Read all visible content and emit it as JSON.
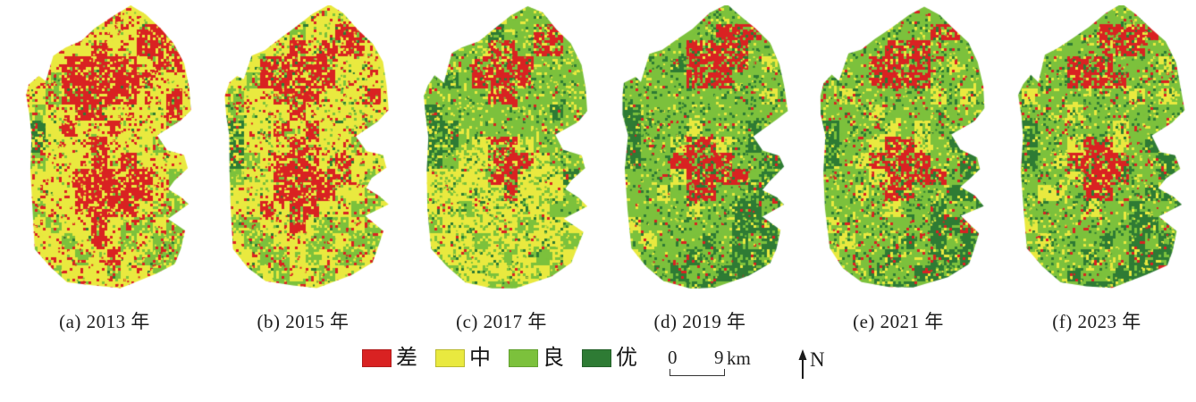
{
  "figure": {
    "type": "classified-raster-map-series",
    "classes": {
      "R": "#d92222",
      "Y": "#e9e93f",
      "G": "#7cc13c",
      "D": "#2e7b34"
    },
    "class_names": {
      "R": "差",
      "Y": "中",
      "G": "良",
      "D": "优"
    },
    "boundary": [
      [
        64,
        0
      ],
      [
        72,
        3
      ],
      [
        80,
        8
      ],
      [
        88,
        13
      ],
      [
        93,
        20
      ],
      [
        96,
        28
      ],
      [
        97,
        36
      ],
      [
        91,
        40
      ],
      [
        79,
        45
      ],
      [
        84,
        50
      ],
      [
        93,
        52
      ],
      [
        95,
        56
      ],
      [
        88,
        60
      ],
      [
        84,
        63
      ],
      [
        92,
        66
      ],
      [
        96,
        69
      ],
      [
        84,
        73
      ],
      [
        94,
        78
      ],
      [
        91,
        84
      ],
      [
        88,
        89
      ],
      [
        77,
        93
      ],
      [
        58,
        97
      ],
      [
        44,
        97
      ],
      [
        30,
        95
      ],
      [
        20,
        90
      ],
      [
        12,
        84
      ],
      [
        10,
        70
      ],
      [
        9,
        57
      ],
      [
        10,
        45
      ],
      [
        8,
        38
      ],
      [
        7,
        31
      ],
      [
        9,
        27
      ],
      [
        14,
        24
      ],
      [
        18,
        26
      ],
      [
        22,
        17
      ],
      [
        29,
        15
      ],
      [
        37,
        12
      ],
      [
        45,
        8
      ],
      [
        55,
        3
      ]
    ],
    "panels": [
      {
        "caption": "(a) 2013 年",
        "seed": 11,
        "weights": {
          "R": 0.32,
          "Y": 0.52,
          "G": 0.13,
          "D": 0.03
        },
        "grid": [
          "YYYYYYRYYYYY",
          "YYYRYYYYRRYY",
          "YRYYYRYYRRRY",
          "YYYRRRRRYRRY",
          "YYGRRRRRRYYY",
          "YYGRRRRRYYRY",
          "DGYYRRYYYYRY",
          "DDYRYYRYYYGY",
          "GDYYYRYYYGYY",
          "YGYYYRYRYYYY",
          "YYYYRRRRRYGY",
          "YYYYRRRRRYGG",
          "YGYYRRRRYGGG",
          "YYGYYRYGGYGG",
          "YYYGYRYGYGGG",
          "YYYYGYRYGGGY",
          "YYGYYYGYYGYY",
          "YYYYRYYYYYYY"
        ]
      },
      {
        "caption": "(b) 2015 年",
        "seed": 22,
        "weights": {
          "R": 0.22,
          "Y": 0.5,
          "G": 0.22,
          "D": 0.06
        },
        "grid": [
          "YYYYGGYYYYYY",
          "YYGYYGYYRRYY",
          "YRYYYRYRRRYY",
          "YRYRRRRRYYYY",
          "YYGRRRRRYYYY",
          "YGYYRRRYYYRY",
          "DGYYYRYYYYYY",
          "DDYYRYRYYYGY",
          "GDYYYRRYYGYY",
          "YDGYRRRYRYYY",
          "YGYYRRRRRYGY",
          "YYYYRRRRYYGG",
          "YYYRYRRYYGGY",
          "YGGYYRYGGYGY",
          "YYGGYYGGYGGY",
          "YYYGGYGYGGYY",
          "YYGYGYYGYYYY",
          "YYYYGGYYYYYY"
        ]
      },
      {
        "caption": "(c) 2017 年",
        "seed": 33,
        "weights": {
          "R": 0.05,
          "Y": 0.35,
          "G": 0.47,
          "D": 0.13
        },
        "grid": [
          "GGGGGGGGGGGG",
          "GGGGGDGGRRGG",
          "GGGGGRRGRRGG",
          "GGGGRRRRGGGG",
          "GGDGRRRRGGGG",
          "GGGGGRRGGGGG",
          "DDGGGGGGGDGG",
          "DDDGGGGGGGGG",
          "GDDGYRRYGGDG",
          "GDGYYRRRYGGG",
          "GYYYYRRYYYDG",
          "YYYYYYRYYYGG",
          "YYYGYYYYYGGY",
          "YGYYYYYGYYYY",
          "YYYYGYYYYYGY",
          "YYYYYYGYGYYY",
          "YYGYYYYYYGYY",
          "YGYYYGGYYYYY"
        ]
      },
      {
        "caption": "(d) 2019 年",
        "seed": 44,
        "weights": {
          "R": 0.09,
          "Y": 0.17,
          "G": 0.47,
          "D": 0.27
        },
        "grid": [
          "GGGGGGGGGGGG",
          "GGGGGGGRRRGG",
          "RRGGGRRRRGGG",
          "GRGGDRRRRGYG",
          "GGGGGRRRGGGG",
          "DGGGGGGGGGYG",
          "DDGGGGGGGGGG",
          "DDGGGYGGGDGG",
          "GDGGYRRYGDGG",
          "GDGGRRRRGGDD",
          "GGGGYRRRRGDD",
          "GGGYGRRGGDDD",
          "DGGGGYGGDDGD",
          "GYGGGGGGDDDD",
          "GGYGGGDGDGDD",
          "GYGGGDGGDDDD",
          "GGGGDGGDDDDD",
          "GGGGGDDGDDDD"
        ]
      },
      {
        "caption": "(e) 2021 年",
        "seed": 55,
        "weights": {
          "R": 0.13,
          "Y": 0.25,
          "G": 0.42,
          "D": 0.2
        },
        "grid": [
          "GGGGGGGGGGGG",
          "GRRGGGGGRRGG",
          "RRGGGRRRGGGG",
          "GGGGRRRRGYGG",
          "GGGGRRRRGGGG",
          "GGYGGGGGYGYG",
          "DGGGYGGGGGGG",
          "DDGGGYGYGGGG",
          "GDGGYRRYGDGG",
          "GDGYRRRRGGDG",
          "GGGGYRRRRGDD",
          "GGGYGRRGGDDD",
          "DGGGGYGGDGGD",
          "GYGGGGGGDDRD",
          "GGYGGGDGDGDD",
          "GYGGGDGGDDDD",
          "GGGGDGGDDDDD",
          "GGGGGDDGDDDD"
        ]
      },
      {
        "caption": "(f) 2023 年",
        "seed": 66,
        "weights": {
          "R": 0.1,
          "Y": 0.24,
          "G": 0.44,
          "D": 0.22
        },
        "grid": [
          "GGGGGGGGGGGG",
          "GGGGGGRRRRGG",
          "GRGGGGRRRGGG",
          "GGGGRRRGGGYG",
          "GGGGRRRRGGGG",
          "GYGGGGGGYGYG",
          "DGGGYGGGGGGG",
          "DDGGGGGYGGGG",
          "GDGGYRRYGDGG",
          "GDGYRRRRGGDG",
          "GGGGYRRRGGDD",
          "GGYYGRRGGDDD",
          "DGGGGYGGDGGD",
          "GYGGGGGGDDGD",
          "GGYGGGDGDGDD",
          "GYGGGDGGDDDD",
          "GGGGDGGDDDRD",
          "GGGGGDDGDDDD"
        ]
      }
    ],
    "legend": {
      "items": [
        {
          "key": "R",
          "label": "差",
          "color": "#d92222",
          "border": "#b01b1b"
        },
        {
          "key": "Y",
          "label": "中",
          "color": "#e9e93f",
          "border": "#b9b92f"
        },
        {
          "key": "G",
          "label": "良",
          "color": "#7cc13c",
          "border": "#61a02e"
        },
        {
          "key": "D",
          "label": "优",
          "color": "#2e7b34",
          "border": "#235f28"
        }
      ]
    },
    "scalebar": {
      "zero": "0",
      "nine": "9",
      "unit": "km"
    },
    "north": {
      "label": "N"
    }
  }
}
